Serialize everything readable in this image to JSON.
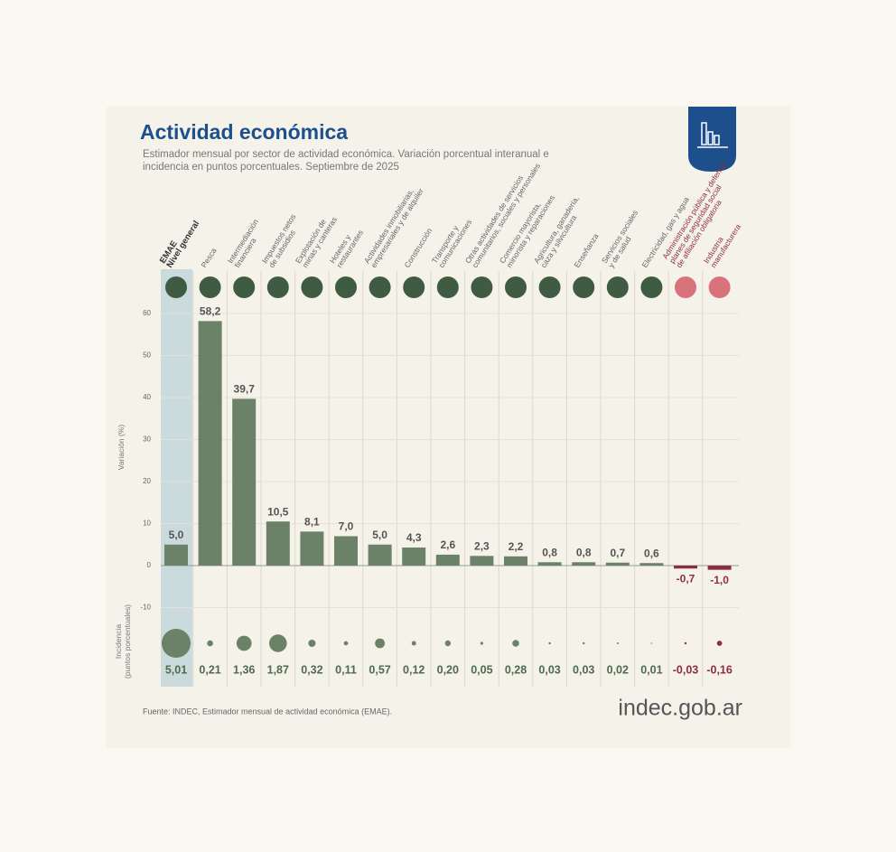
{
  "chart_data": {
    "type": "bar",
    "title": "Actividad económica",
    "subtitle": "Estimador mensual por sector de actividad económica. Variación porcentual interanual e incidencia en puntos porcentuales. Septiembre de 2025",
    "y_label": "Variación (%)",
    "incidence_label": "Incidencia\n(puntos porcentuales)",
    "source": "Fuente: INDEC, Estimador mensual de actividad económica (EMAE).",
    "brand": "indec.gob.ar",
    "categories": [
      "EMAE\nNivel general",
      "Pesca",
      "Intermediación\nfinanciera",
      "Impuestos netos\nde subsidios",
      "Explotación de\nminas y canteras",
      "Hoteles y\nrestaurantes",
      "Actividades inmobiliarias,\nempresariales y de alquiler",
      "Construcción",
      "Transporte y\ncomunicaciones",
      "Otras actividades de servicios\ncomunitarios, sociales y personales",
      "Comercio mayorista,\nminorista y reparaciones",
      "Agricultura, ganadería,\ncaza y silvicultura",
      "Enseñanza",
      "Servicios sociales\ny de salud",
      "Electricidad, gas y agua",
      "Administración pública y defensa;\nplanes de seguridad social\nde afiliación obligatoria",
      "Industria\nmanufacturera"
    ],
    "values": [
      5.0,
      58.2,
      39.7,
      10.5,
      8.1,
      7.0,
      5.0,
      4.3,
      2.6,
      2.3,
      2.2,
      0.8,
      0.8,
      0.7,
      0.6,
      -0.7,
      -1.0
    ],
    "value_labels": [
      "5,0",
      "58,2",
      "39,7",
      "10,5",
      "8,1",
      "7,0",
      "5,0",
      "4,3",
      "2,6",
      "2,3",
      "2,2",
      "0,8",
      "0,8",
      "0,7",
      "0,6",
      "-0,7",
      "-1,0"
    ],
    "incidence": [
      5.01,
      0.21,
      1.36,
      1.87,
      0.32,
      0.11,
      0.57,
      0.12,
      0.2,
      0.05,
      0.28,
      0.03,
      0.03,
      0.02,
      0.01,
      -0.03,
      -0.16
    ],
    "incidence_labels": [
      "5,01",
      "0,21",
      "1,36",
      "1,87",
      "0,32",
      "0,11",
      "0,57",
      "0,12",
      "0,20",
      "0,05",
      "0,28",
      "0,03",
      "0,03",
      "0,02",
      "0,01",
      "-0,03",
      "-0,16"
    ],
    "color": "#6b8268",
    "negative_color": "#8c2f3c",
    "ylim": [
      -10,
      62
    ],
    "yticks": [
      -10,
      0,
      10,
      20,
      30,
      40,
      50,
      60
    ],
    "grid": true
  }
}
